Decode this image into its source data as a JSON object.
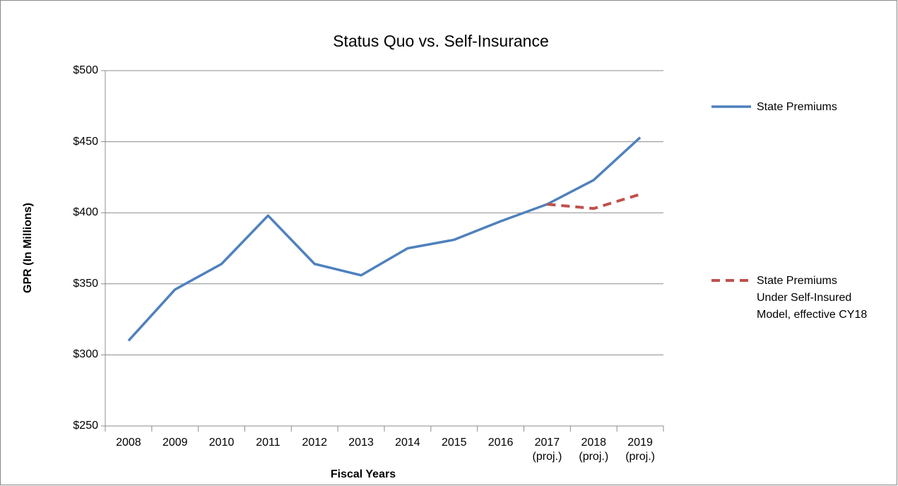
{
  "chart_data": {
    "type": "line",
    "title": "Status Quo vs. Self-Insurance",
    "y_label": "GPR (In Millions)",
    "x_label": "Fiscal Years",
    "categories": [
      "2008",
      "2009",
      "2010",
      "2011",
      "2012",
      "2013",
      "2014",
      "2015",
      "2016",
      "2017 (proj.)",
      "2018 (proj.)",
      "2019 (proj.)"
    ],
    "series": [
      {
        "name": "State Premiums",
        "color": "#4f81bd",
        "dash": false,
        "values": [
          310,
          346,
          364,
          398,
          364,
          356,
          375,
          381,
          394,
          406,
          423,
          453
        ]
      },
      {
        "name": "State Premiums Under Self-Insured Model, effective CY18",
        "color": "#c0504d",
        "dash": true,
        "values": [
          null,
          null,
          null,
          null,
          null,
          null,
          null,
          null,
          null,
          406,
          403,
          413
        ]
      }
    ],
    "ylim": [
      250,
      500
    ],
    "yticks": [
      {
        "value": 250,
        "label": "$250"
      },
      {
        "value": 300,
        "label": "$300"
      },
      {
        "value": 350,
        "label": "$350"
      },
      {
        "value": 400,
        "label": "$400"
      },
      {
        "value": 450,
        "label": "$450"
      },
      {
        "value": 500,
        "label": "$500"
      }
    ],
    "grid": true,
    "legend": "right"
  }
}
